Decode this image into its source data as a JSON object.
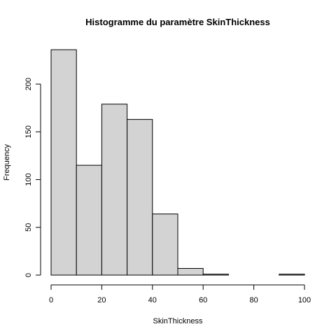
{
  "chart_data": {
    "type": "bar",
    "title": "Histogramme du paramètre SkinThickness",
    "xlabel": "SkinThickness",
    "ylabel": "Frequency",
    "bins": [
      {
        "start": 0,
        "end": 10,
        "count": 236
      },
      {
        "start": 10,
        "end": 20,
        "count": 115
      },
      {
        "start": 20,
        "end": 30,
        "count": 179
      },
      {
        "start": 30,
        "end": 40,
        "count": 163
      },
      {
        "start": 40,
        "end": 50,
        "count": 64
      },
      {
        "start": 50,
        "end": 60,
        "count": 7
      },
      {
        "start": 60,
        "end": 70,
        "count": 1
      },
      {
        "start": 70,
        "end": 80,
        "count": 0
      },
      {
        "start": 80,
        "end": 90,
        "count": 0
      },
      {
        "start": 90,
        "end": 100,
        "count": 1
      }
    ],
    "xlim": [
      0,
      100
    ],
    "ylim": [
      0,
      236
    ],
    "xticks": [
      0,
      20,
      40,
      60,
      80,
      100
    ],
    "yticks": [
      0,
      50,
      100,
      150,
      200
    ],
    "grid": false,
    "bar_color": "#d3d3d3",
    "edge_color": "#000000"
  }
}
